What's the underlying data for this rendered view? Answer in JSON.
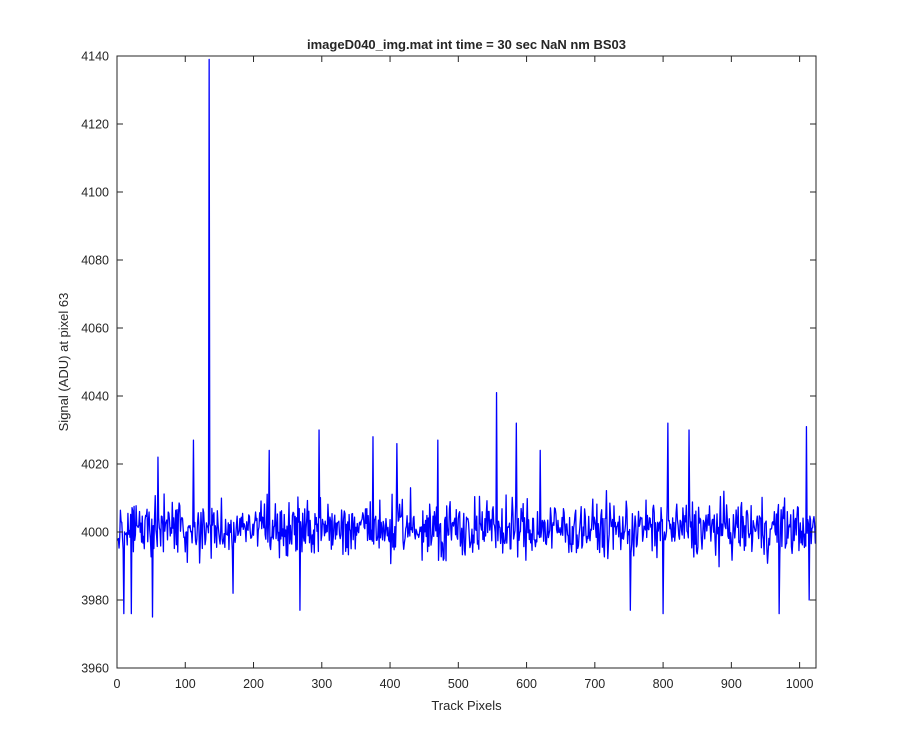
{
  "chart_data": {
    "type": "line",
    "title": "imageD040_img.mat int time = 30 sec  NaN nm BS03",
    "xlabel": "Track Pixels",
    "ylabel": "Signal (ADU) at pixel 63",
    "xlim": [
      0,
      1024
    ],
    "ylim": [
      3960,
      4140
    ],
    "x_ticks": [
      0,
      100,
      200,
      300,
      400,
      500,
      600,
      700,
      800,
      900,
      1000
    ],
    "y_ticks": [
      3960,
      3980,
      4000,
      4020,
      4040,
      4060,
      4080,
      4100,
      4120,
      4140
    ],
    "grid": false,
    "legend": "none",
    "line_color": "#0000ff",
    "series": [
      {
        "x_start": 1,
        "x_step": 1,
        "n_points": 1024,
        "baseline": 4001,
        "noise_range": [
          3976,
          4026
        ],
        "notable_points": [
          {
            "x": 10,
            "y": 3976
          },
          {
            "x": 21,
            "y": 3976
          },
          {
            "x": 52,
            "y": 3975
          },
          {
            "x": 60,
            "y": 4022
          },
          {
            "x": 112,
            "y": 4027
          },
          {
            "x": 135,
            "y": 4139
          },
          {
            "x": 170,
            "y": 3982
          },
          {
            "x": 223,
            "y": 4024
          },
          {
            "x": 268,
            "y": 3977
          },
          {
            "x": 296,
            "y": 4030
          },
          {
            "x": 375,
            "y": 4028
          },
          {
            "x": 410,
            "y": 4026
          },
          {
            "x": 470,
            "y": 4027
          },
          {
            "x": 556,
            "y": 4041
          },
          {
            "x": 585,
            "y": 4032
          },
          {
            "x": 620,
            "y": 4024
          },
          {
            "x": 752,
            "y": 3977
          },
          {
            "x": 800,
            "y": 3976
          },
          {
            "x": 807,
            "y": 4032
          },
          {
            "x": 838,
            "y": 4030
          },
          {
            "x": 970,
            "y": 3976
          },
          {
            "x": 1010,
            "y": 4031
          },
          {
            "x": 1014,
            "y": 3980
          }
        ]
      }
    ]
  }
}
